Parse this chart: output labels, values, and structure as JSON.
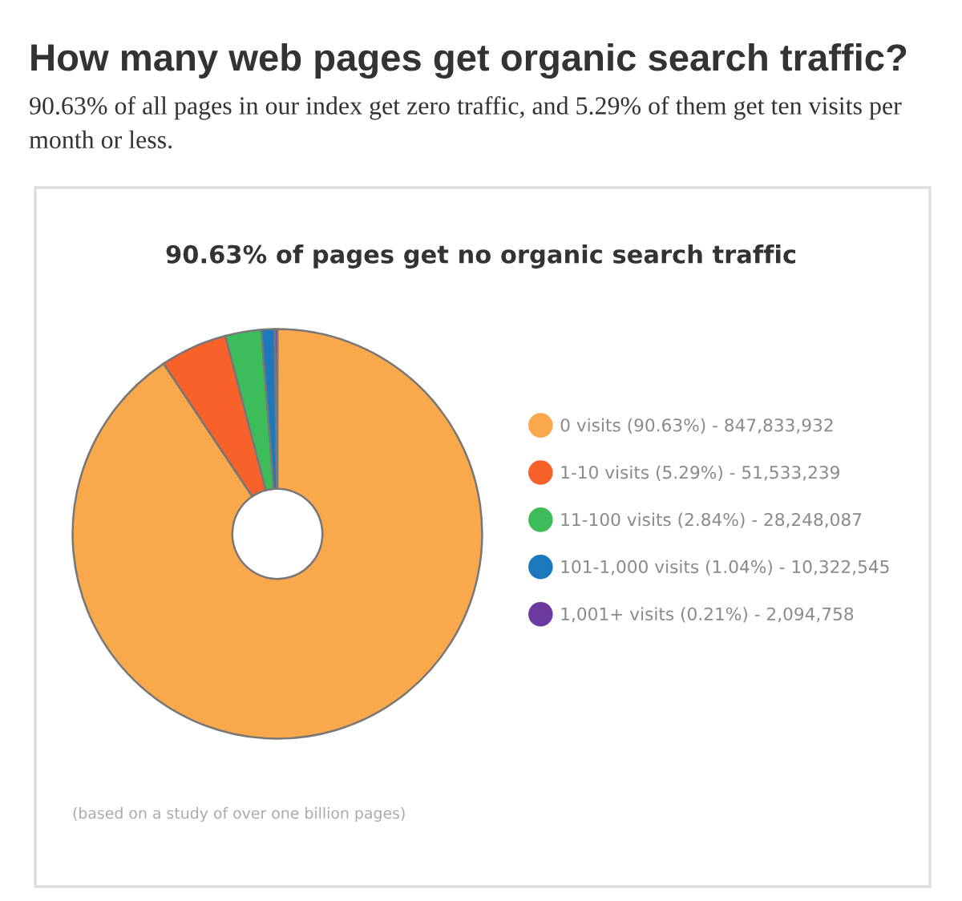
{
  "chart_data": {
    "type": "donut",
    "title": "How many web pages get organic search traffic?",
    "subtitle": "90.63% of all pages in our index get zero traffic, and 5.29% of them get ten visits per month or less.",
    "annotations": [
      "90.63% of pages get no organic search traffic",
      "(based on a study of over one billion pages)"
    ],
    "categories": [
      "0 visits (90.63%) - 847,833,932",
      "1-10 visits (5.29%) - 51,533,239",
      "11-100 visits (2.84%) - 28,248,087",
      "101-1,000 visits (1.04%) - 10,322,545",
      "1,001+ visits (0.21%) - 2,094,758"
    ],
    "values": [
      90.63,
      5.29,
      2.84,
      1.04,
      0.21
    ],
    "colors": [
      "#f9a84b",
      "#f8612a",
      "#3dbd5a",
      "#1b78bd",
      "#6c3aa0"
    ],
    "legend": "right"
  }
}
